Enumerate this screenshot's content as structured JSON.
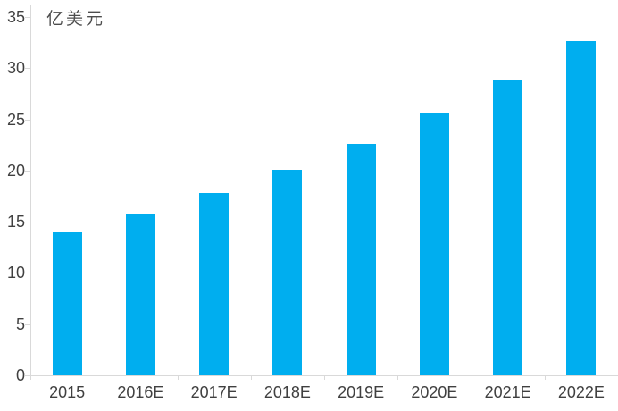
{
  "chart_data": {
    "type": "bar",
    "title": "",
    "unit_label": "亿美元",
    "categories": [
      "2015",
      "2016E",
      "2017E",
      "2018E",
      "2019E",
      "2020E",
      "2021E",
      "2022E"
    ],
    "values": [
      14.0,
      15.8,
      17.8,
      20.1,
      22.6,
      25.6,
      28.9,
      32.6
    ],
    "xlabel": "",
    "ylabel": "亿美元",
    "ylim": [
      0,
      35
    ],
    "yticks": [
      0,
      5,
      10,
      15,
      20,
      25,
      30,
      35
    ],
    "grid": false,
    "legend": "none",
    "colors": {
      "bar": "#00AEEF",
      "axis": "#d9d9d9",
      "text": "#404040",
      "background": "#ffffff"
    }
  }
}
